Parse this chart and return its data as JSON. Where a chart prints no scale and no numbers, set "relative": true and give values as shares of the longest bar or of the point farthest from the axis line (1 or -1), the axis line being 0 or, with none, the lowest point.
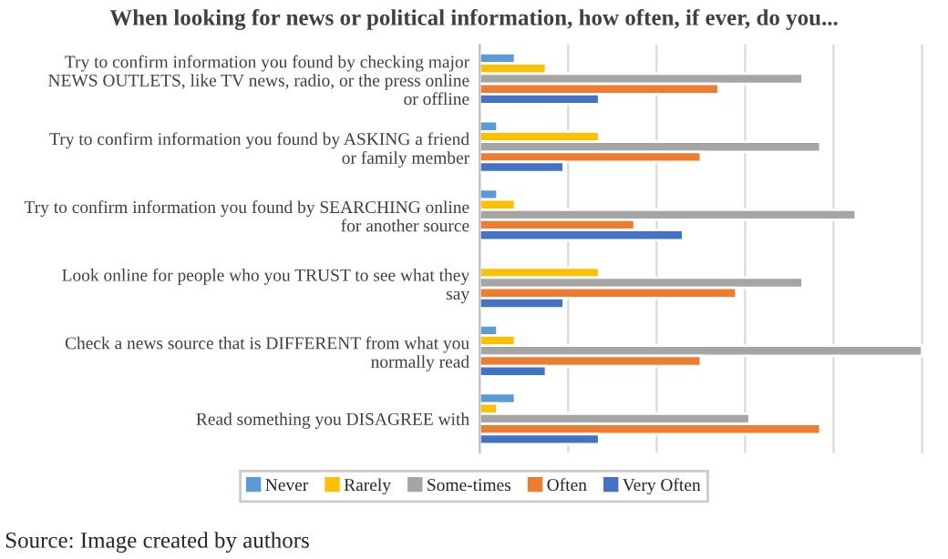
{
  "chart_data": {
    "type": "bar",
    "orientation": "horizontal",
    "relative": true,
    "title": "When looking for news or political information, how often, if ever, do you...",
    "categories": [
      "Try to confirm information you found by checking major NEWS OUTLETS, like TV news, radio, or the press online or offline",
      "Try to confirm information you found by ASKING a friend or family member",
      "Try to confirm information you found by SEARCHING online for another source",
      "Look online for people who you TRUST to see what they say",
      "Check a news source that is DIFFERENT from what you normally read",
      "Read something you DISAGREE with"
    ],
    "series": [
      {
        "name": "Never",
        "color": "#5b9bd5",
        "values": [
          0.08,
          0.04,
          0.04,
          null,
          0.04,
          0.08
        ]
      },
      {
        "name": "Rarely",
        "color": "#ffc000",
        "values": [
          0.15,
          0.27,
          0.08,
          0.27,
          0.08,
          0.04
        ]
      },
      {
        "name": "Some-times",
        "color": "#a5a5a5",
        "values": [
          0.73,
          0.77,
          0.85,
          0.73,
          1,
          0.61
        ]
      },
      {
        "name": "Often",
        "color": "#ed7d31",
        "values": [
          0.54,
          0.5,
          0.35,
          0.58,
          0.5,
          0.77
        ]
      },
      {
        "name": "Very Often",
        "color": "#4472c4",
        "values": [
          0.27,
          0.19,
          0.46,
          0.19,
          0.15,
          0.27
        ]
      }
    ],
    "grid": "x",
    "legend": "bottom",
    "annotations": [
      "Source: Image created by authors"
    ]
  }
}
